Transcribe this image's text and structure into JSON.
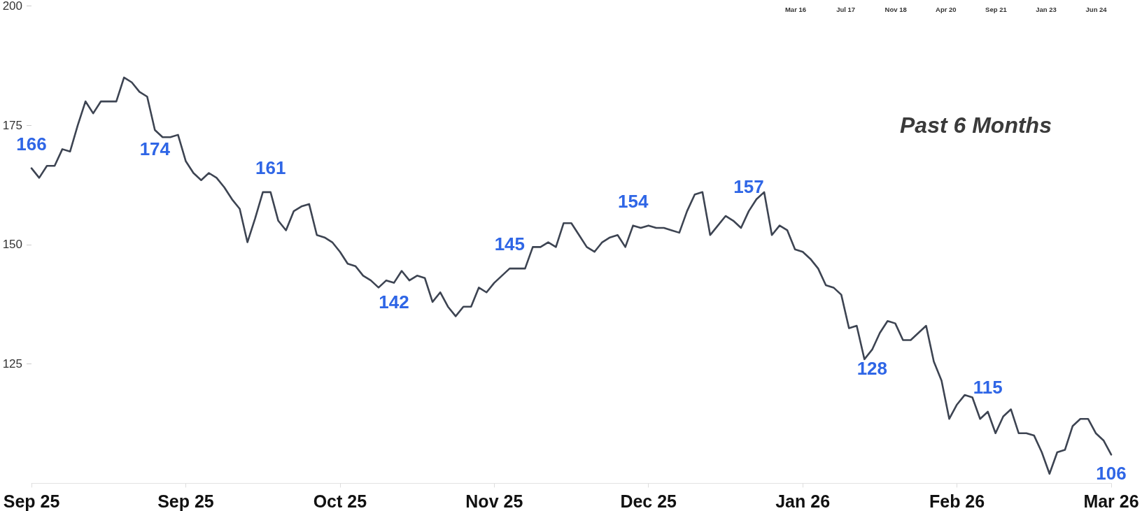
{
  "chart_data": {
    "type": "line",
    "title": "Past 6 Months",
    "annotations": [
      "Mar 16",
      "Jul 17",
      "Nov 18",
      "Apr 20",
      "Sep 21",
      "Jan 23",
      "Jun 24"
    ],
    "categories": [
      "Sep 25",
      null,
      null,
      null,
      null,
      null,
      null,
      null,
      null,
      null,
      null,
      null,
      null,
      null,
      null,
      null,
      null,
      null,
      null,
      null,
      "Sep 25",
      null,
      null,
      null,
      null,
      null,
      null,
      null,
      null,
      null,
      null,
      null,
      null,
      null,
      null,
      null,
      null,
      null,
      null,
      null,
      "Oct 25",
      null,
      null,
      null,
      null,
      null,
      null,
      null,
      null,
      null,
      null,
      null,
      null,
      null,
      null,
      null,
      null,
      null,
      null,
      null,
      "Nov 25",
      null,
      null,
      null,
      null,
      null,
      null,
      null,
      null,
      null,
      null,
      null,
      null,
      null,
      null,
      null,
      null,
      null,
      null,
      null,
      "Dec 25",
      null,
      null,
      null,
      null,
      null,
      null,
      null,
      null,
      null,
      null,
      null,
      null,
      null,
      null,
      null,
      null,
      null,
      null,
      null,
      "Jan 26",
      null,
      null,
      null,
      null,
      null,
      null,
      null,
      null,
      null,
      null,
      null,
      null,
      null,
      null,
      null,
      null,
      null,
      null,
      null,
      "Feb 26",
      null,
      null,
      null,
      null,
      null,
      null,
      null,
      null,
      null,
      null,
      null,
      null,
      null,
      null,
      null,
      null,
      null,
      null,
      null,
      "Mar 26"
    ],
    "series": [
      {
        "color": "#3d4452",
        "values": [
          166,
          164,
          166.5,
          166.5,
          170,
          169.5,
          175,
          180,
          177.5,
          180,
          180,
          180,
          185,
          184,
          182,
          181,
          174,
          172.5,
          172.5,
          173,
          167.5,
          165,
          163.5,
          165,
          164,
          162,
          159.5,
          157.5,
          150.5,
          155.5,
          161,
          161,
          155,
          153,
          157,
          158,
          158.5,
          152,
          151.5,
          150.5,
          148.5,
          146,
          145.5,
          143.5,
          142.5,
          141,
          142.5,
          142,
          144.5,
          142.5,
          143.5,
          143,
          138,
          140,
          137,
          135,
          137,
          137,
          141,
          140,
          142,
          143.5,
          145,
          145,
          145,
          149.5,
          149.5,
          150.5,
          149.5,
          154.5,
          154.5,
          152,
          149.5,
          148.5,
          150.5,
          151.5,
          152,
          149.5,
          154,
          153.5,
          154,
          153.5,
          153.5,
          153,
          152.5,
          157,
          160.5,
          161,
          152,
          154,
          156,
          155,
          153.5,
          157,
          159.5,
          161,
          152,
          154,
          153,
          149,
          148.5,
          147,
          145,
          141.5,
          141,
          139.5,
          132.5,
          133,
          126,
          128,
          131.5,
          134,
          133.5,
          130,
          130,
          131.5,
          133,
          125.5,
          121.5,
          113.5,
          116.5,
          118.5,
          118,
          113.5,
          115,
          110.5,
          114,
          115.5,
          110.5,
          110.5,
          110,
          106.5,
          102,
          106.5,
          107,
          112,
          113.5,
          113.5,
          110.5,
          109,
          106
        ],
        "value_labels": [
          "166",
          null,
          null,
          null,
          null,
          null,
          null,
          null,
          null,
          null,
          null,
          null,
          null,
          null,
          null,
          null,
          "174",
          null,
          null,
          null,
          null,
          null,
          null,
          null,
          null,
          null,
          null,
          null,
          null,
          null,
          null,
          "161",
          null,
          null,
          null,
          null,
          null,
          null,
          null,
          null,
          null,
          null,
          null,
          null,
          null,
          null,
          null,
          "142",
          null,
          null,
          null,
          null,
          null,
          null,
          null,
          null,
          null,
          null,
          null,
          null,
          null,
          null,
          "145",
          null,
          null,
          null,
          null,
          null,
          null,
          null,
          null,
          null,
          null,
          null,
          null,
          null,
          null,
          null,
          "154",
          null,
          null,
          null,
          null,
          null,
          null,
          null,
          null,
          null,
          null,
          null,
          null,
          null,
          null,
          "157",
          null,
          null,
          null,
          null,
          null,
          null,
          null,
          null,
          null,
          null,
          null,
          null,
          null,
          null,
          null,
          "128",
          null,
          null,
          null,
          null,
          null,
          null,
          null,
          null,
          null,
          null,
          null,
          null,
          null,
          null,
          "115",
          null,
          null,
          null,
          null,
          null,
          null,
          null,
          null,
          null,
          null,
          null,
          null,
          null,
          null,
          null,
          "106"
        ]
      }
    ],
    "ylim": [
      100,
      200
    ],
    "yticks": [
      125,
      150,
      175,
      200
    ],
    "grid": false,
    "line_style": "solid"
  }
}
